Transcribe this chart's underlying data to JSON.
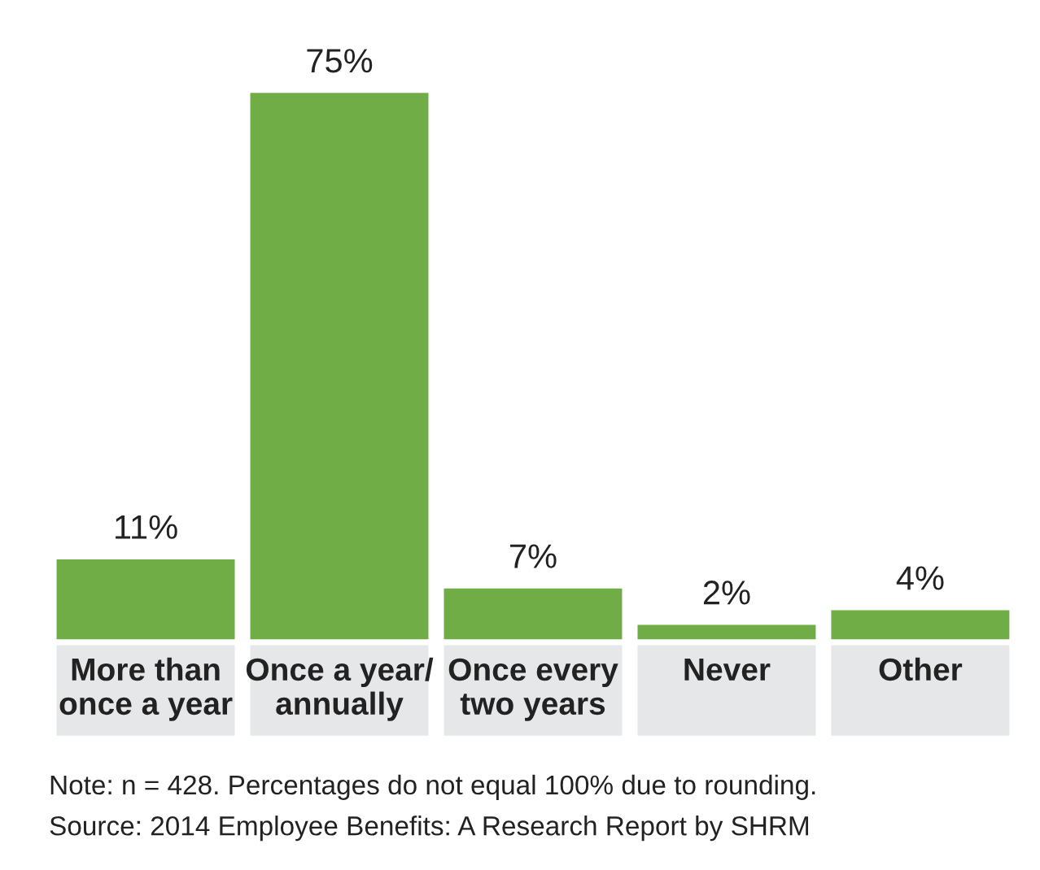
{
  "chart_data": {
    "type": "bar",
    "categories": [
      "More than\nonce a year",
      "Once a year/\nannually",
      "Once every\ntwo years",
      "Never",
      "Other"
    ],
    "values": [
      11,
      75,
      7,
      2,
      4
    ],
    "value_labels": [
      "11%",
      "75%",
      "7%",
      "2%",
      "4%"
    ],
    "color": "#70ad47",
    "annotations": [
      "Note: n = 428. Percentages do not equal 100% due to rounding.",
      "Source: 2014 Employee Benefits: A Research Report by SHRM"
    ]
  }
}
